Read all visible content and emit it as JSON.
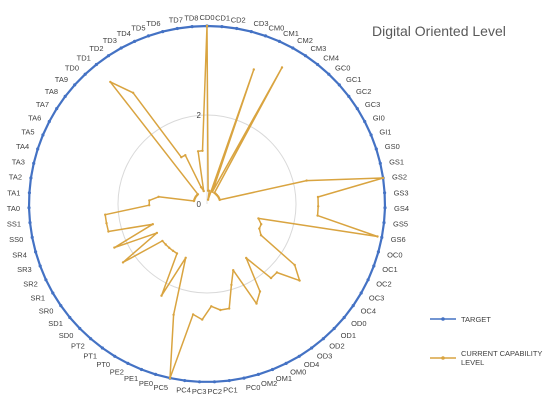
{
  "chart_data": {
    "type": "radar",
    "title": "Digital Oriented Level",
    "categories": [
      "CD0",
      "CD1",
      "CD2",
      "CD3",
      "CM0",
      "CM1",
      "CM2",
      "CM3",
      "CM4",
      "GC0",
      "GC1",
      "GC2",
      "GC3",
      "GI0",
      "GI1",
      "GS0",
      "GS1",
      "GS2",
      "GS3",
      "GS4",
      "GS5",
      "GS6",
      "OC0",
      "OC1",
      "OC2",
      "OC3",
      "OC4",
      "OD0",
      "OD1",
      "OD2",
      "OD3",
      "OD4",
      "OM0",
      "OM1",
      "OM2",
      "PC0",
      "PC1",
      "PC2",
      "PC3",
      "PC4",
      "PC5",
      "PE0",
      "PE1",
      "PE2",
      "PT0",
      "PT1",
      "PT2",
      "SD0",
      "SD1",
      "SR0",
      "SR1",
      "SR2",
      "SR3",
      "SR4",
      "SS0",
      "SS1",
      "TA0",
      "TA1",
      "TA2",
      "TA3",
      "TA4",
      "TA5",
      "TA6",
      "TA7",
      "TA8",
      "TA9",
      "TD0",
      "TD1",
      "TD2",
      "TD3",
      "TD4",
      "TD5",
      "TD6",
      "TD7",
      "TD8"
    ],
    "axis_ticks": [
      "0",
      "2"
    ],
    "rmax": 4,
    "series": [
      {
        "name": "TARGET",
        "color": "#4472C4",
        "values": [
          4,
          4,
          4,
          4,
          4,
          4,
          4,
          4,
          4,
          4,
          4,
          4,
          4,
          4,
          4,
          4,
          4,
          4,
          4,
          4,
          4,
          4,
          4,
          4,
          4,
          4,
          4,
          4,
          4,
          4,
          4,
          4,
          4,
          4,
          4,
          4,
          4,
          4,
          4,
          4,
          4,
          4,
          4,
          4,
          4,
          4,
          4,
          4,
          4,
          4,
          4,
          4,
          4,
          4,
          4,
          4,
          4,
          4,
          4,
          4,
          4,
          4,
          4,
          4,
          4,
          4,
          4,
          4,
          4,
          4,
          4,
          4,
          4,
          4,
          4
        ]
      },
      {
        "name": "CURRENT CAPABILITY LEVEL",
        "color": "#D9A440",
        "values": [
          4,
          0.3,
          0.3,
          0.1,
          3.2,
          0.3,
          3.5,
          0.3,
          0.3,
          0.3,
          0.3,
          0.3,
          0.3,
          0.3,
          0.3,
          0.3,
          2.3,
          4,
          2.5,
          2.5,
          2.5,
          3.9,
          1.2,
          1.3,
          1.3,
          1.4,
          2.4,
          2.7,
          2.2,
          2.2,
          1.5,
          2.3,
          2.5,
          1.6,
          1.9,
          2.4,
          2.4,
          2.3,
          2.6,
          2.5,
          4,
          2.6,
          1.3,
          2.3,
          1.3,
          1.3,
          1.3,
          1.3,
          1.3,
          2.3,
          1.3,
          2.3,
          1.3,
          2.3,
          2.3,
          2.3,
          1.3,
          1.3,
          1.1,
          0.3,
          0.3,
          0.3,
          0.3,
          0.3,
          0.3,
          0.3,
          0.3,
          3.5,
          3,
          1.2,
          1.2,
          0.4,
          0.3,
          1.2,
          1.2
        ]
      }
    ],
    "legend_position": "right"
  }
}
